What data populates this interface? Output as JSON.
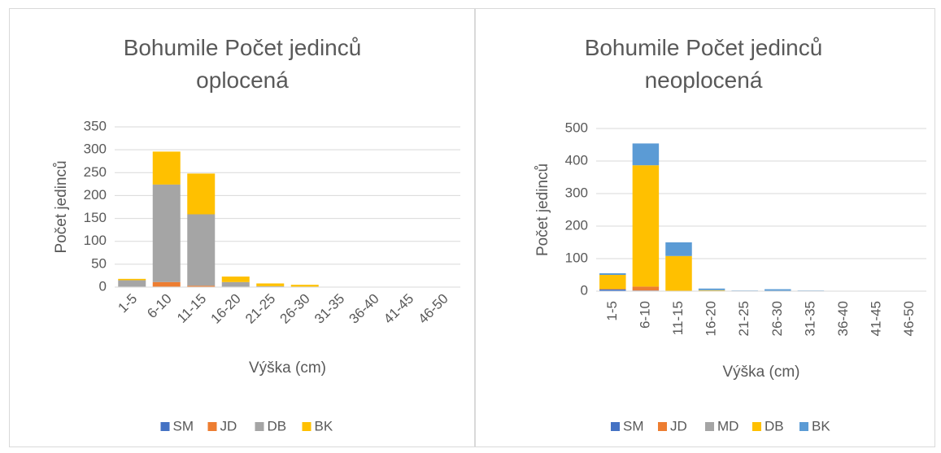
{
  "chart_data": [
    {
      "type": "bar",
      "stacked": true,
      "title": "Bohumile Počet jedinců oplocená",
      "x_label": "Výška (cm)",
      "y_label": "Počet jedinců",
      "categories": [
        "1-5",
        "6-10",
        "11-15",
        "16-20",
        "21-25",
        "26-30",
        "31-35",
        "36-40",
        "41-45",
        "46-50"
      ],
      "series": [
        {
          "name": "SM",
          "color": "#4472c4",
          "values": [
            0,
            1,
            0,
            0,
            0,
            0,
            0,
            0,
            0,
            0
          ]
        },
        {
          "name": "JD",
          "color": "#ed7d31",
          "values": [
            1,
            10,
            3,
            1,
            0,
            0,
            0,
            0,
            0,
            0
          ]
        },
        {
          "name": "DB",
          "color": "#a5a5a5",
          "values": [
            14,
            213,
            156,
            10,
            2,
            1,
            0,
            0,
            0,
            0
          ]
        },
        {
          "name": "BK",
          "color": "#ffc000",
          "values": [
            3,
            72,
            89,
            12,
            6,
            4,
            0,
            0,
            0,
            0
          ]
        }
      ],
      "ylim": [
        0,
        350
      ],
      "yticks": [
        0,
        50,
        100,
        150,
        200,
        250,
        300,
        350
      ],
      "grid": true,
      "legend": "bottom"
    },
    {
      "type": "bar",
      "stacked": true,
      "title": "Bohumile Počet jedinců neoplocená",
      "x_label": "Výška (cm)",
      "y_label": "Počet jedinců",
      "categories": [
        "1-5",
        "6-10",
        "11-15",
        "16-20",
        "21-25",
        "26-30",
        "31-35",
        "36-40",
        "41-45",
        "46-50"
      ],
      "series": [
        {
          "name": "SM",
          "color": "#4472c4",
          "values": [
            5,
            2,
            0,
            0,
            0,
            0,
            0,
            0,
            0,
            0
          ]
        },
        {
          "name": "JD",
          "color": "#ed7d31",
          "values": [
            2,
            12,
            1,
            0,
            0,
            0,
            0,
            0,
            0,
            0
          ]
        },
        {
          "name": "MD",
          "color": "#a5a5a5",
          "values": [
            0,
            0,
            0,
            0,
            0,
            0,
            0,
            0,
            0,
            0
          ]
        },
        {
          "name": "DB",
          "color": "#ffc000",
          "values": [
            43,
            373,
            107,
            3,
            0,
            0,
            0,
            0,
            0,
            0
          ]
        },
        {
          "name": "BK",
          "color": "#5b9bd5",
          "values": [
            5,
            67,
            42,
            5,
            2,
            6,
            2,
            0,
            0,
            0
          ]
        }
      ],
      "ylim": [
        0,
        500
      ],
      "yticks": [
        0,
        100,
        200,
        300,
        400,
        500
      ],
      "grid": true,
      "legend": "bottom"
    }
  ]
}
